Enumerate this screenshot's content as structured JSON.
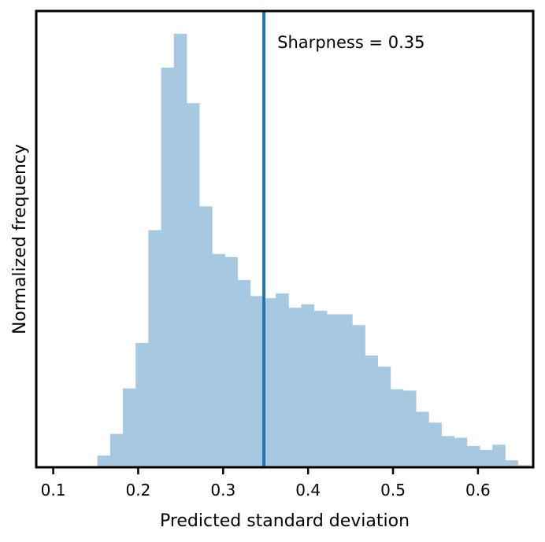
{
  "chart_data": {
    "type": "bar",
    "subtype": "histogram",
    "xlabel": "Predicted standard deviation",
    "ylabel": "Normalized frequency",
    "xlim": [
      0.08,
      0.665
    ],
    "ylim": [
      0,
      1.0
    ],
    "xticks": [
      "0.1",
      "0.2",
      "0.3",
      "0.4",
      "0.5",
      "0.6"
    ],
    "yticks": [],
    "grid": false,
    "legend": "none",
    "bar_color": "#a6c8e0",
    "bins": [
      {
        "x0": 0.137,
        "x1": 0.152,
        "value": 0.002
      },
      {
        "x0": 0.152,
        "x1": 0.167,
        "value": 0.027
      },
      {
        "x0": 0.167,
        "x1": 0.182,
        "value": 0.077
      },
      {
        "x0": 0.182,
        "x1": 0.197,
        "value": 0.182
      },
      {
        "x0": 0.197,
        "x1": 0.212,
        "value": 0.287
      },
      {
        "x0": 0.212,
        "x1": 0.227,
        "value": 0.547
      },
      {
        "x0": 0.227,
        "x1": 0.242,
        "value": 0.922
      },
      {
        "x0": 0.242,
        "x1": 0.257,
        "value": 1.0
      },
      {
        "x0": 0.257,
        "x1": 0.272,
        "value": 0.84
      },
      {
        "x0": 0.272,
        "x1": 0.287,
        "value": 0.602
      },
      {
        "x0": 0.287,
        "x1": 0.302,
        "value": 0.492
      },
      {
        "x0": 0.302,
        "x1": 0.317,
        "value": 0.485
      },
      {
        "x0": 0.317,
        "x1": 0.332,
        "value": 0.432
      },
      {
        "x0": 0.332,
        "x1": 0.347,
        "value": 0.395
      },
      {
        "x0": 0.347,
        "x1": 0.362,
        "value": 0.39
      },
      {
        "x0": 0.362,
        "x1": 0.377,
        "value": 0.401
      },
      {
        "x0": 0.377,
        "x1": 0.392,
        "value": 0.368
      },
      {
        "x0": 0.392,
        "x1": 0.407,
        "value": 0.376
      },
      {
        "x0": 0.407,
        "x1": 0.422,
        "value": 0.361
      },
      {
        "x0": 0.422,
        "x1": 0.437,
        "value": 0.353
      },
      {
        "x0": 0.437,
        "x1": 0.452,
        "value": 0.353
      },
      {
        "x0": 0.452,
        "x1": 0.467,
        "value": 0.328
      },
      {
        "x0": 0.467,
        "x1": 0.482,
        "value": 0.258
      },
      {
        "x0": 0.482,
        "x1": 0.497,
        "value": 0.232
      },
      {
        "x0": 0.497,
        "x1": 0.512,
        "value": 0.18
      },
      {
        "x0": 0.512,
        "x1": 0.527,
        "value": 0.177
      },
      {
        "x0": 0.527,
        "x1": 0.542,
        "value": 0.128
      },
      {
        "x0": 0.542,
        "x1": 0.557,
        "value": 0.103
      },
      {
        "x0": 0.557,
        "x1": 0.572,
        "value": 0.072
      },
      {
        "x0": 0.572,
        "x1": 0.587,
        "value": 0.068
      },
      {
        "x0": 0.587,
        "x1": 0.602,
        "value": 0.049
      },
      {
        "x0": 0.602,
        "x1": 0.617,
        "value": 0.04
      },
      {
        "x0": 0.617,
        "x1": 0.632,
        "value": 0.052
      },
      {
        "x0": 0.632,
        "x1": 0.647,
        "value": 0.016
      },
      {
        "x0": 0.647,
        "x1": 0.662,
        "value": 0.005
      }
    ],
    "vline": {
      "x": 0.348,
      "color": "#1f77b4"
    },
    "annotations": [
      {
        "text": "Sharpness = 0.35",
        "x": 0.362,
        "y": 0.985
      }
    ]
  }
}
